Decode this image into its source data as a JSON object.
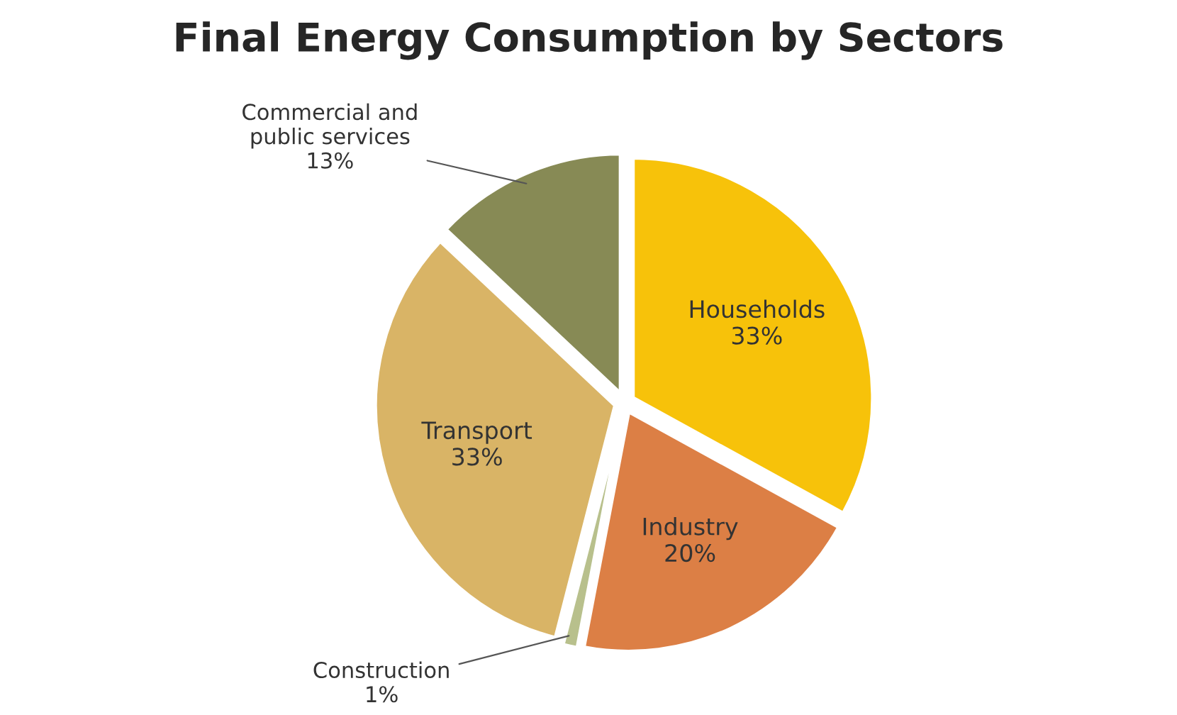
{
  "chart_data": {
    "type": "pie",
    "title": "Final Energy Consumption by Sectors",
    "categories": [
      "Households",
      "Industry",
      "Construction",
      "Transport",
      "Commercial and public services"
    ],
    "values": [
      33,
      20,
      1,
      33,
      13
    ],
    "colors": [
      "#f7c20a",
      "#dc7f45",
      "#b8c08c",
      "#d9b466",
      "#878a55"
    ],
    "value_labels": [
      "33%",
      "20%",
      "1%",
      "33%",
      "13%"
    ]
  }
}
